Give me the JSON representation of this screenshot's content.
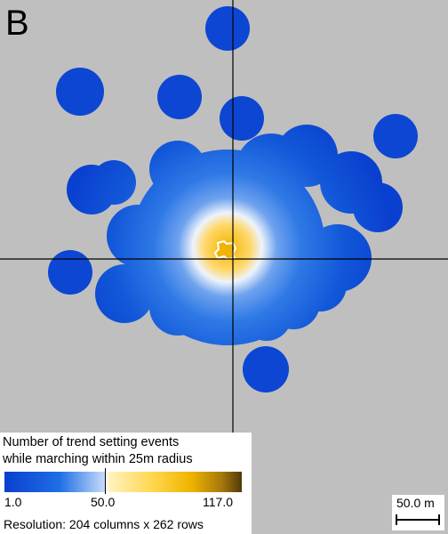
{
  "panel_label": "B",
  "legend": {
    "title_line1": "Number of trend setting events",
    "title_line2": "while marching  within 25m radius",
    "ticks": {
      "min": "1.0",
      "mid": "50.0",
      "max": "117.0"
    },
    "resolution": "Resolution: 204 columns x 262 rows",
    "colors": {
      "low": "#0a3fd0",
      "mid_blue": "#1e6fe4",
      "light_blue": "#c7dbfa",
      "pale_gold": "#fff4c4",
      "gold": "#f0b400",
      "dark_gold": "#4e3a08"
    }
  },
  "scalebar": {
    "label": "50.0 m"
  },
  "map": {
    "background": "#bfbfbf",
    "crosshair_color": "#000000",
    "outline_color": "#ffffff"
  }
}
